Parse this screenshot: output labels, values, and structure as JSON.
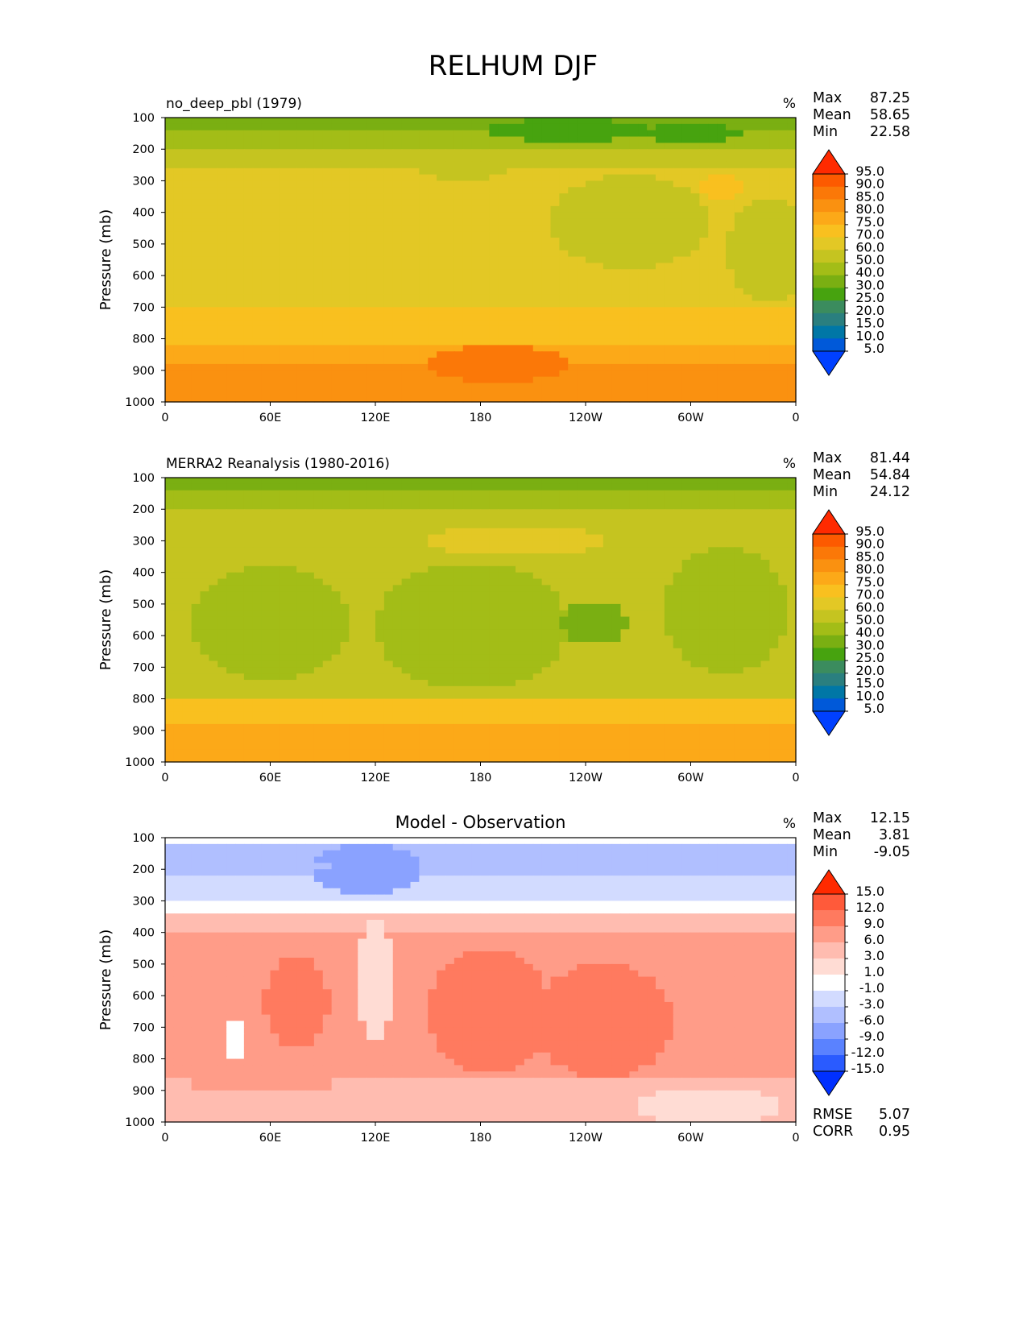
{
  "title": "RELHUM DJF",
  "colors": {
    "abs": [
      "#0040ff",
      "#0059d9",
      "#0077a6",
      "#2a7f7f",
      "#3b8c5e",
      "#47a30f",
      "#7aaf12",
      "#a3bd17",
      "#c5c420",
      "#e3c825",
      "#f9c01f",
      "#fca918",
      "#fa9110",
      "#fb7808",
      "#fd5a00",
      "#ff2a00"
    ],
    "diff": [
      "#0030ff",
      "#2a5bff",
      "#5a82ff",
      "#8aa2ff",
      "#b0bfff",
      "#d2dbff",
      "#ffffff",
      "#ffdcd4",
      "#ffbcb0",
      "#ff9c88",
      "#ff7a5f",
      "#ff5a3a",
      "#ff2a00"
    ]
  },
  "chart_data": [
    {
      "type": "heatmap",
      "title": "no_deep_pbl (1979)",
      "units": "%",
      "ylabel": "Pressure (mb)",
      "yticks": [
        "100",
        "200",
        "300",
        "400",
        "500",
        "600",
        "700",
        "800",
        "900",
        "1000"
      ],
      "ylim": [
        100,
        1000
      ],
      "xticks": [
        "0",
        "60E",
        "120E",
        "180",
        "120W",
        "60W",
        "0"
      ],
      "xlim": [
        0,
        360
      ],
      "stats": [
        {
          "label": "Max",
          "value": "87.25"
        },
        {
          "label": "Mean",
          "value": "58.65"
        },
        {
          "label": "Min",
          "value": "22.58"
        }
      ],
      "colorbar_levels": [
        "5.0",
        "10.0",
        "15.0",
        "20.0",
        "25.0",
        "30.0",
        "40.0",
        "50.0",
        "60.0",
        "70.0",
        "75.0",
        "80.0",
        "85.0",
        "90.0",
        "95.0"
      ],
      "bands": [
        {
          "p_top": 100,
          "p_bot": 145,
          "value": 35
        },
        {
          "p_top": 145,
          "p_bot": 195,
          "value": 45
        },
        {
          "p_top": 195,
          "p_bot": 255,
          "value": 52
        },
        {
          "p_top": 255,
          "p_bot": 700,
          "value": 62
        },
        {
          "p_top": 700,
          "p_bot": 820,
          "value": 72
        },
        {
          "p_top": 820,
          "p_bot": 880,
          "value": 77
        },
        {
          "p_top": 880,
          "p_bot": 1000,
          "value": 82
        }
      ],
      "blobs": [
        {
          "lon": 60,
          "p": 120,
          "rlon": 30,
          "rp": 20,
          "value": 33
        },
        {
          "lon": 230,
          "p": 140,
          "rlon": 45,
          "rp": 35,
          "value": 28
        },
        {
          "lon": 300,
          "p": 150,
          "rlon": 30,
          "rp": 25,
          "value": 28
        },
        {
          "lon": 265,
          "p": 430,
          "rlon": 45,
          "rp": 150,
          "value": 52
        },
        {
          "lon": 170,
          "p": 250,
          "rlon": 30,
          "rp": 45,
          "value": 52
        },
        {
          "lon": 345,
          "p": 520,
          "rlon": 25,
          "rp": 160,
          "value": 52
        },
        {
          "lon": 318,
          "p": 320,
          "rlon": 12,
          "rp": 40,
          "value": 72
        },
        {
          "lon": 190,
          "p": 880,
          "rlon": 40,
          "rp": 60,
          "value": 87
        }
      ]
    },
    {
      "type": "heatmap",
      "title": "MERRA2 Reanalysis (1980-2016)",
      "units": "%",
      "ylabel": "Pressure (mb)",
      "yticks": [
        "100",
        "200",
        "300",
        "400",
        "500",
        "600",
        "700",
        "800",
        "900",
        "1000"
      ],
      "ylim": [
        100,
        1000
      ],
      "xticks": [
        "0",
        "60E",
        "120E",
        "180",
        "120W",
        "60W",
        "0"
      ],
      "xlim": [
        0,
        360
      ],
      "stats": [
        {
          "label": "Max",
          "value": "81.44"
        },
        {
          "label": "Mean",
          "value": "54.84"
        },
        {
          "label": "Min",
          "value": "24.12"
        }
      ],
      "colorbar_levels": [
        "5.0",
        "10.0",
        "15.0",
        "20.0",
        "25.0",
        "30.0",
        "40.0",
        "50.0",
        "60.0",
        "70.0",
        "75.0",
        "80.0",
        "85.0",
        "90.0",
        "95.0"
      ],
      "bands": [
        {
          "p_top": 100,
          "p_bot": 150,
          "value": 35
        },
        {
          "p_top": 150,
          "p_bot": 210,
          "value": 45
        },
        {
          "p_top": 210,
          "p_bot": 300,
          "value": 52
        },
        {
          "p_top": 300,
          "p_bot": 800,
          "value": 55
        },
        {
          "p_top": 800,
          "p_bot": 890,
          "value": 72
        },
        {
          "p_top": 890,
          "p_bot": 1000,
          "value": 78
        }
      ],
      "blobs": [
        {
          "lon": 60,
          "p": 560,
          "rlon": 45,
          "rp": 180,
          "value": 45
        },
        {
          "lon": 175,
          "p": 570,
          "rlon": 55,
          "rp": 200,
          "value": 45
        },
        {
          "lon": 320,
          "p": 520,
          "rlon": 35,
          "rp": 200,
          "value": 45
        },
        {
          "lon": 245,
          "p": 560,
          "rlon": 18,
          "rp": 70,
          "value": 33
        },
        {
          "lon": 200,
          "p": 300,
          "rlon": 50,
          "rp": 50,
          "value": 62
        },
        {
          "lon": 250,
          "p": 120,
          "rlon": 30,
          "rp": 20,
          "value": 30
        }
      ]
    },
    {
      "type": "heatmap",
      "title": "Model - Observation",
      "units": "%",
      "ylabel": "Pressure (mb)",
      "yticks": [
        "100",
        "200",
        "300",
        "400",
        "500",
        "600",
        "700",
        "800",
        "900",
        "1000"
      ],
      "ylim": [
        100,
        1000
      ],
      "xticks": [
        "0",
        "60E",
        "120E",
        "180",
        "120W",
        "60W",
        "0"
      ],
      "xlim": [
        0,
        360
      ],
      "stats": [
        {
          "label": "Max",
          "value": "12.15"
        },
        {
          "label": "Mean",
          "value": "3.81"
        },
        {
          "label": "Min",
          "value": "-9.05"
        }
      ],
      "extra_stats": [
        {
          "label": "RMSE",
          "value": "5.07"
        },
        {
          "label": "CORR",
          "value": "0.95"
        }
      ],
      "colorbar_levels": [
        "-15.0",
        "-12.0",
        "-9.0",
        "-6.0",
        "-3.0",
        "-1.0",
        "1.0",
        "3.0",
        "6.0",
        "9.0",
        "12.0",
        "15.0"
      ],
      "bands": [
        {
          "p_top": 100,
          "p_bot": 115,
          "value": 0
        },
        {
          "p_top": 115,
          "p_bot": 230,
          "value": -4
        },
        {
          "p_top": 230,
          "p_bot": 300,
          "value": -2
        },
        {
          "p_top": 300,
          "p_bot": 340,
          "value": 0
        },
        {
          "p_top": 340,
          "p_bot": 400,
          "value": 4
        },
        {
          "p_top": 400,
          "p_bot": 870,
          "value": 7
        },
        {
          "p_top": 870,
          "p_bot": 1000,
          "value": 5
        }
      ],
      "blobs": [
        {
          "lon": 115,
          "p": 200,
          "rlon": 30,
          "rp": 80,
          "value": -7
        },
        {
          "lon": 60,
          "p": 190,
          "rlon": 35,
          "rp": 30,
          "value": -6
        },
        {
          "lon": 335,
          "p": 160,
          "rlon": 30,
          "rp": 40,
          "value": -6
        },
        {
          "lon": 120,
          "p": 550,
          "rlon": 10,
          "rp": 200,
          "value": 2
        },
        {
          "lon": 185,
          "p": 650,
          "rlon": 35,
          "rp": 200,
          "value": 10
        },
        {
          "lon": 250,
          "p": 680,
          "rlon": 40,
          "rp": 180,
          "value": 10
        },
        {
          "lon": 75,
          "p": 620,
          "rlon": 18,
          "rp": 150,
          "value": 10
        },
        {
          "lon": 55,
          "p": 880,
          "rlon": 40,
          "rp": 30,
          "value": 8
        },
        {
          "lon": 310,
          "p": 950,
          "rlon": 40,
          "rp": 60,
          "value": 2
        },
        {
          "lon": 40,
          "p": 740,
          "rlon": 5,
          "rp": 60,
          "value": 0
        }
      ]
    }
  ]
}
